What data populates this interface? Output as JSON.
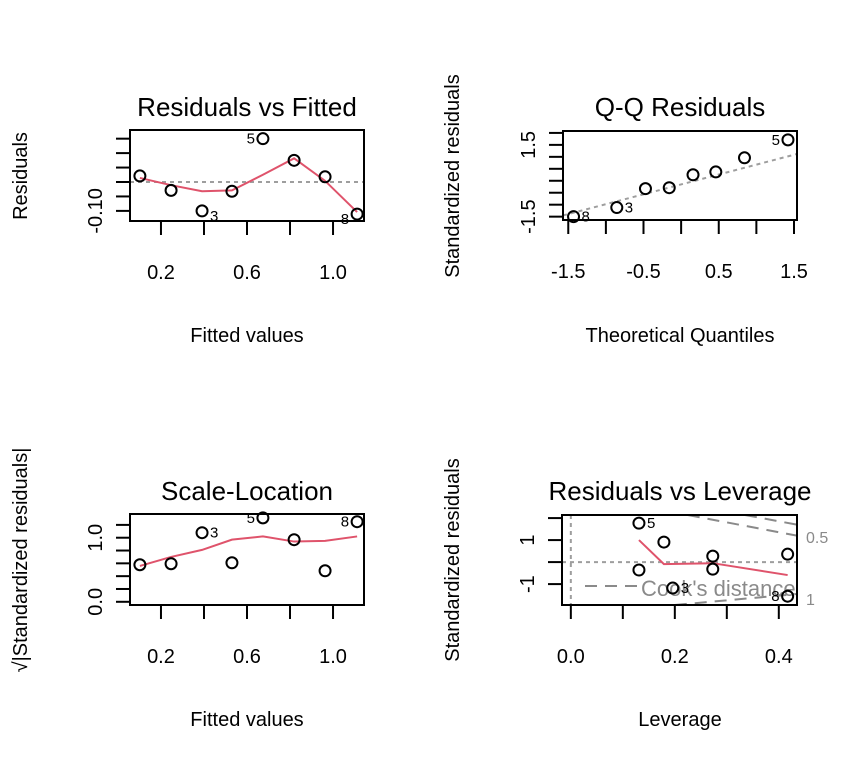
{
  "chart_data": [
    {
      "type": "scatter",
      "title": "Residuals vs Fitted",
      "xlabel": "Fitted values",
      "ylabel": "Residuals",
      "xlim": [
        0.056,
        1.144
      ],
      "ylim": [
        -0.135,
        0.18
      ],
      "xticks": [
        0.2,
        0.4,
        0.6,
        0.8,
        1.0
      ],
      "xtick_labels": [
        "0.2",
        "",
        "0.6",
        "",
        "1.0"
      ],
      "yticks": [
        -0.1,
        -0.05,
        0.0,
        0.05,
        0.1,
        0.15
      ],
      "ytick_labels": [
        "-0.10",
        "",
        "",
        "",
        "",
        ""
      ],
      "reference_line": {
        "type": "horizontal",
        "y": 0,
        "style": "dotted"
      },
      "points": [
        {
          "x": 0.102,
          "y": 0.021,
          "label": ""
        },
        {
          "x": 0.247,
          "y": -0.029,
          "label": ""
        },
        {
          "x": 0.391,
          "y": -0.1,
          "label": "3"
        },
        {
          "x": 0.53,
          "y": -0.032,
          "label": ""
        },
        {
          "x": 0.674,
          "y": 0.15,
          "label": "5"
        },
        {
          "x": 0.819,
          "y": 0.075,
          "label": ""
        },
        {
          "x": 0.963,
          "y": 0.018,
          "label": ""
        },
        {
          "x": 1.112,
          "y": -0.111,
          "label": "8"
        }
      ],
      "label_side": [
        "",
        "",
        "right",
        "",
        "left",
        "",
        "",
        "left"
      ],
      "smoother": {
        "color": "#DF536B",
        "x": [
          0.102,
          0.247,
          0.391,
          0.53,
          0.674,
          0.819,
          0.963,
          1.112
        ],
        "y": [
          0.014,
          -0.011,
          -0.032,
          -0.029,
          0.025,
          0.082,
          0.004,
          -0.104
        ]
      }
    },
    {
      "type": "scatter",
      "title": "Q-Q Residuals",
      "xlabel": "Theoretical Quantiles",
      "ylabel": "Standardized residuals",
      "xlim": [
        -1.57,
        1.54
      ],
      "ylim": [
        -1.64,
        2.08
      ],
      "xticks": [
        -1.5,
        -1.0,
        -0.5,
        0.0,
        0.5,
        1.0,
        1.5
      ],
      "xtick_labels": [
        "-1.5",
        "",
        "-0.5",
        "",
        "0.5",
        "",
        "1.5"
      ],
      "yticks": [
        -1.5,
        -1.0,
        -0.5,
        0.0,
        0.5,
        1.0,
        1.5,
        2.0
      ],
      "ytick_labels": [
        "-1.5",
        "",
        "",
        "",
        "",
        "",
        "1.5",
        ""
      ],
      "reference_line": {
        "type": "qqline",
        "x": [
          -1.57,
          1.54
        ],
        "y": [
          -1.45,
          1.12
        ],
        "style": "dashed"
      },
      "points": [
        {
          "x": -1.43,
          "y": -1.5,
          "label": "8"
        },
        {
          "x": -0.855,
          "y": -1.12,
          "label": "3"
        },
        {
          "x": -0.474,
          "y": -0.33,
          "label": ""
        },
        {
          "x": -0.158,
          "y": -0.29,
          "label": ""
        },
        {
          "x": 0.158,
          "y": 0.25,
          "label": ""
        },
        {
          "x": 0.461,
          "y": 0.37,
          "label": ""
        },
        {
          "x": 0.842,
          "y": 0.96,
          "label": ""
        },
        {
          "x": 1.42,
          "y": 1.71,
          "label": "5"
        }
      ],
      "label_side": [
        "right",
        "right",
        "",
        "",
        "",
        "",
        "",
        "left"
      ]
    },
    {
      "type": "scatter",
      "title": "Scale-Location",
      "xlabel": "Fitted values",
      "ylabel": "√|Standardized residuals|",
      "xlim": [
        0.056,
        1.144
      ],
      "ylim": [
        -0.05,
        1.37
      ],
      "xticks": [
        0.2,
        0.4,
        0.6,
        0.8,
        1.0
      ],
      "xtick_labels": [
        "0.2",
        "",
        "0.6",
        "",
        "1.0"
      ],
      "yticks": [
        0.0,
        0.2,
        0.4,
        0.6,
        0.8,
        1.0,
        1.2
      ],
      "ytick_labels": [
        "0.0",
        "",
        "",
        "",
        "",
        "1.0",
        ""
      ],
      "points": [
        {
          "x": 0.102,
          "y": 0.578,
          "label": ""
        },
        {
          "x": 0.247,
          "y": 0.594,
          "label": ""
        },
        {
          "x": 0.391,
          "y": 1.078,
          "label": "3"
        },
        {
          "x": 0.53,
          "y": 0.609,
          "label": ""
        },
        {
          "x": 0.674,
          "y": 1.31,
          "label": "5"
        },
        {
          "x": 0.819,
          "y": 0.969,
          "label": ""
        },
        {
          "x": 0.963,
          "y": 0.484,
          "label": ""
        },
        {
          "x": 1.112,
          "y": 1.25,
          "label": "8"
        }
      ],
      "label_side": [
        "",
        "",
        "right",
        "",
        "left",
        "",
        "",
        "left"
      ],
      "smoother": {
        "color": "#DF536B",
        "x": [
          0.102,
          0.247,
          0.391,
          0.53,
          0.674,
          0.819,
          0.963,
          1.112
        ],
        "y": [
          0.56,
          0.7,
          0.81,
          0.97,
          1.02,
          0.94,
          0.95,
          1.02
        ]
      }
    },
    {
      "type": "scatter",
      "title": "Residuals vs Leverage",
      "xlabel": "Leverage",
      "ylabel": "Standardized residuals",
      "xlim": [
        -0.017,
        0.435
      ],
      "ylim": [
        -1.95,
        2.14
      ],
      "xticks": [
        0.0,
        0.1,
        0.2,
        0.3,
        0.4
      ],
      "xtick_labels": [
        "0.0",
        "",
        "0.2",
        "",
        "0.4"
      ],
      "yticks": [
        -1,
        0,
        1,
        2
      ],
      "ytick_labels": [
        "-1",
        "",
        "1",
        ""
      ],
      "reference_lines": [
        {
          "type": "horizontal",
          "y": 0,
          "style": "dotted"
        },
        {
          "type": "vertical",
          "x": 0,
          "style": "dotted"
        }
      ],
      "points": [
        {
          "x": 0.131,
          "y": 1.77,
          "label": "5"
        },
        {
          "x": 0.179,
          "y": 0.91,
          "label": ""
        },
        {
          "x": 0.131,
          "y": -0.36,
          "label": ""
        },
        {
          "x": 0.196,
          "y": -1.18,
          "label": "3"
        },
        {
          "x": 0.273,
          "y": 0.27,
          "label": ""
        },
        {
          "x": 0.273,
          "y": -0.32,
          "label": ""
        },
        {
          "x": 0.417,
          "y": 0.36,
          "label": ""
        },
        {
          "x": 0.417,
          "y": -1.55,
          "label": "8"
        }
      ],
      "label_side": [
        "right",
        "",
        "",
        "right",
        "",
        "",
        "",
        "left"
      ],
      "smoother": {
        "color": "#DF536B",
        "x": [
          0.131,
          0.179,
          0.273,
          0.417
        ],
        "y": [
          1.0,
          -0.09,
          -0.05,
          -0.59
        ]
      },
      "cooks_distance": {
        "legend": "Cook's distance",
        "contour_labels": [
          "0.5",
          "1"
        ],
        "contours": [
          {
            "level": 0.5,
            "x": [
              0.225,
              0.435
            ],
            "y": [
              2.14,
              1.2
            ]
          },
          {
            "level": 1,
            "x": [
              0.335,
              0.435
            ],
            "y": [
              2.14,
              1.7
            ]
          },
          {
            "level": 1,
            "x": [
              0.2,
              0.435
            ],
            "y": [
              -1.95,
              -1.45
            ]
          }
        ]
      }
    }
  ]
}
